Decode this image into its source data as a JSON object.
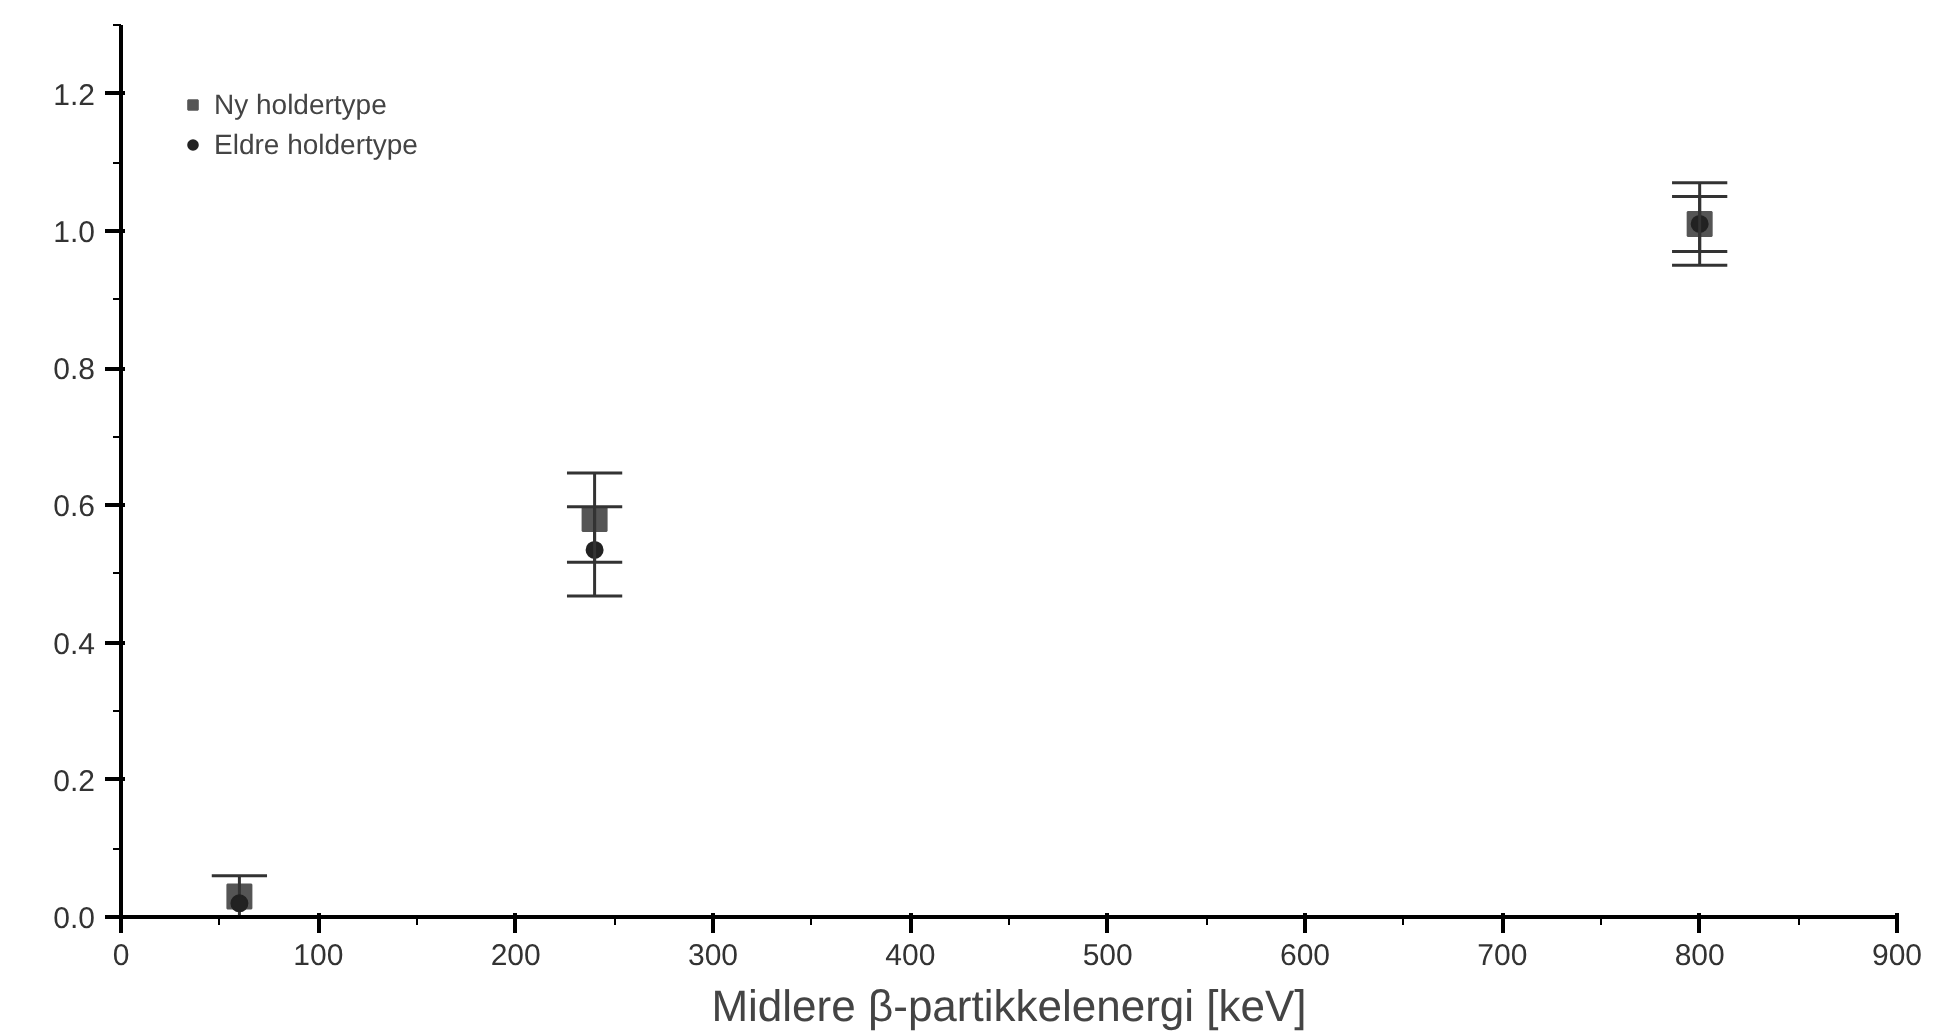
{
  "chart_data": {
    "type": "scatter",
    "xlabel": "Midlere β-partikkelenergi [keV]",
    "x": [
      60,
      240,
      800
    ],
    "series": [
      {
        "name": "Ny holdertype",
        "color": "#555555",
        "marker": "square",
        "values": [
          0.03,
          0.58,
          1.01
        ],
        "errors": [
          [
            0.0,
            0.06
          ],
          [
            0.517,
            0.647
          ],
          [
            0.95,
            1.07
          ]
        ]
      },
      {
        "name": "Eldre holdertype",
        "color": "#222222",
        "marker": "circle",
        "values": [
          0.02,
          0.535,
          1.01
        ],
        "errors": [
          null,
          [
            0.468,
            0.598
          ],
          [
            0.97,
            1.05
          ]
        ]
      }
    ],
    "xlim": [
      0,
      900
    ],
    "ylim": [
      0,
      1.3
    ],
    "xticks": [
      0,
      100,
      200,
      300,
      400,
      500,
      600,
      700,
      800,
      900
    ],
    "yticks": [
      {
        "value": 0,
        "label": "0.0"
      },
      {
        "value": 0.2,
        "label": "0.2"
      },
      {
        "value": 0.4,
        "label": "0.4"
      },
      {
        "value": 0.6,
        "label": "0.6"
      },
      {
        "value": 0.8,
        "label": "0.8"
      },
      {
        "value": 1.0,
        "label": "1.0"
      },
      {
        "value": 1.2,
        "label": "1.2"
      }
    ],
    "grid": false,
    "legend": "top left"
  }
}
